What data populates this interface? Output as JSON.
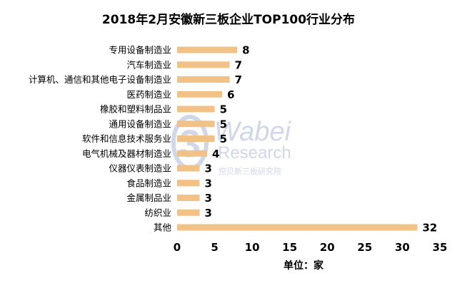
{
  "chart_data": {
    "type": "bar",
    "orientation": "horizontal",
    "title": "2018年2月安徽新三板企业TOP100行业分布",
    "categories": [
      "专用设备制造业",
      "汽车制造业",
      "计算机、通信和其他电子设备制造业",
      "医药制造业",
      "橡胶和塑料制品业",
      "通用设备制造业",
      "软件和信息技术服务业",
      "电气机械及器材制造业",
      "仪器仪表制造业",
      "食品制造业",
      "金属制品业",
      "纺织业",
      "其他"
    ],
    "values": [
      8,
      7,
      7,
      6,
      5,
      5,
      5,
      4,
      3,
      3,
      3,
      3,
      32
    ],
    "xlim": [
      0,
      35
    ],
    "xticks": [
      0,
      5,
      10,
      15,
      20,
      25,
      30,
      35
    ],
    "xlabel": "单位：家",
    "ylabel": "",
    "grid": false,
    "bar_color": "#F2C185"
  },
  "watermark": {
    "brand": "Wabei",
    "sub": "Research",
    "cn": "挖贝新三板研究院",
    "color": "#C9D1E8"
  }
}
